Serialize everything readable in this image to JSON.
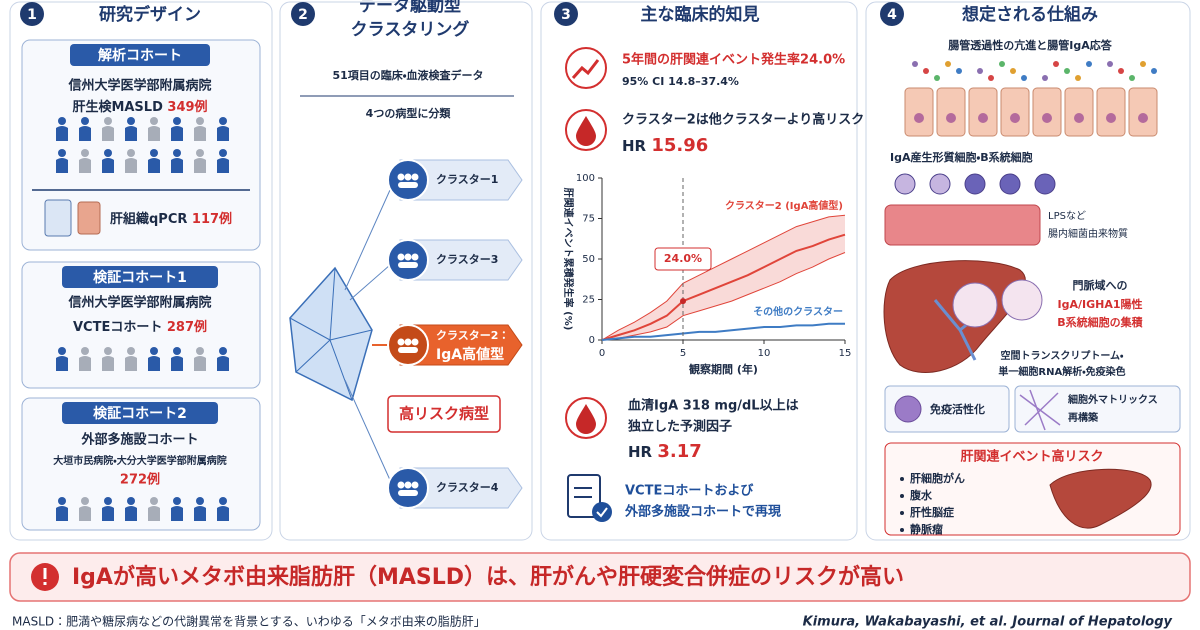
{
  "panel1": {
    "number": "1",
    "title": "研究デザイン",
    "cohort1": {
      "heading": "解析コホート",
      "line1": "信州大学医学部附属病院",
      "line2": "肝生検MASLD",
      "count": "349例",
      "pcr": "肝組織qPCR",
      "pcr_count": "117例"
    },
    "cohort2": {
      "heading": "検証コホート1",
      "line1": "信州大学医学部附属病院",
      "line2": "VCTEコホート",
      "count": "287例"
    },
    "cohort3": {
      "heading": "検証コホート2",
      "line1": "外部多施設コホート",
      "line2": "大垣市民病院・大分大学医学部附属病院",
      "count": "272例"
    }
  },
  "panel2": {
    "number": "2",
    "title_lines": [
      "データ駆動型",
      "クラスタリング"
    ],
    "input": "51項目の臨床・血液検査データ",
    "split": "4つの病型に分類",
    "clusters": [
      "クラスター1",
      "クラスター3",
      "クラスター2：",
      "クラスター4"
    ],
    "cluster2_sub": "IgA高値型",
    "high_risk": "高リスク病型"
  },
  "panel3": {
    "number": "3",
    "title": "主な臨床的知見",
    "finding1": {
      "main": "5年間の肝関連イベント発生率24.0%",
      "ci": "95% CI 14.8–37.4%"
    },
    "finding2": {
      "main": "クラスター2は他クラスターより高リスク",
      "hr_label": "HR",
      "hr": 15.96
    },
    "finding3": {
      "line1": "血清IgA 318 mg/dL以上は",
      "line2": "独立した予測因子",
      "hr_label": "HR",
      "hr": 3.17
    },
    "finding4": {
      "line1": "VCTEコホートおよび",
      "line2": "外部多施設コホートで再現"
    },
    "chart": {
      "type": "line",
      "ylabel": "肝関連イベント累積発生率 (%)",
      "xlabel": "観察期間 (年)",
      "xlim": [
        0,
        15
      ],
      "ylim": [
        0,
        100
      ],
      "xticks": [
        0,
        5,
        10,
        15
      ],
      "yticks": [
        0,
        25,
        50,
        75,
        100
      ],
      "x": [
        0,
        1,
        2,
        3,
        4,
        5,
        6,
        7,
        8,
        9,
        10,
        11,
        12,
        13,
        14,
        15
      ],
      "series": [
        {
          "name": "クラスター2 (IgA高値型)",
          "color": "#e0453a",
          "values": [
            0,
            3,
            6,
            10,
            15,
            24,
            28,
            32,
            36,
            40,
            45,
            50,
            55,
            58,
            62,
            65
          ],
          "ci_upper": [
            0,
            6,
            11,
            17,
            24,
            35,
            40,
            45,
            50,
            55,
            60,
            65,
            70,
            73,
            76,
            77
          ],
          "ci_lower": [
            0,
            1,
            3,
            5,
            8,
            15,
            18,
            21,
            24,
            28,
            32,
            36,
            41,
            45,
            50,
            54
          ]
        },
        {
          "name": "その他のクラスター",
          "color": "#3f7cc4",
          "values": [
            0,
            1,
            2,
            2,
            3,
            4,
            5,
            5,
            6,
            7,
            8,
            8,
            9,
            9,
            10,
            10
          ]
        }
      ],
      "annotation": {
        "text": "24.0%",
        "x": 5,
        "y": 24
      }
    }
  },
  "panel4": {
    "number": "4",
    "title": "想定される仕組み",
    "gut": "腸管透過性の亢進と腸管IgA応答",
    "cells": "IgA産生形質細胞・B系統細胞",
    "lps": [
      "LPSなど",
      "腸内細菌由来物質"
    ],
    "portal": [
      "門脈域への",
      "IgA/IGHA1陽性",
      "B系統細胞の集積"
    ],
    "analysis": [
      "空間トランスクリプトーム・",
      "単一細胞RNA解析・免疫染色"
    ],
    "immune": "免疫活性化",
    "ecm": [
      "細胞外マトリックス",
      "再構築"
    ],
    "risk_title": "肝関連イベント高リスク",
    "risks": [
      "肝細胞がん",
      "腹水",
      "肝性脳症",
      "静脈瘤"
    ]
  },
  "banner": "IgAが高いメタボ由来脂肪肝（MASLD）は、肝がんや肝硬変合併症のリスクが高い",
  "footer": {
    "note": "MASLD：肥満や糖尿病などの代謝異常を背景とする、いわゆる「メタボ由来の脂肪肝」",
    "citation": "Kimura, Wakabayashi, et al. Journal of Hepatology"
  }
}
